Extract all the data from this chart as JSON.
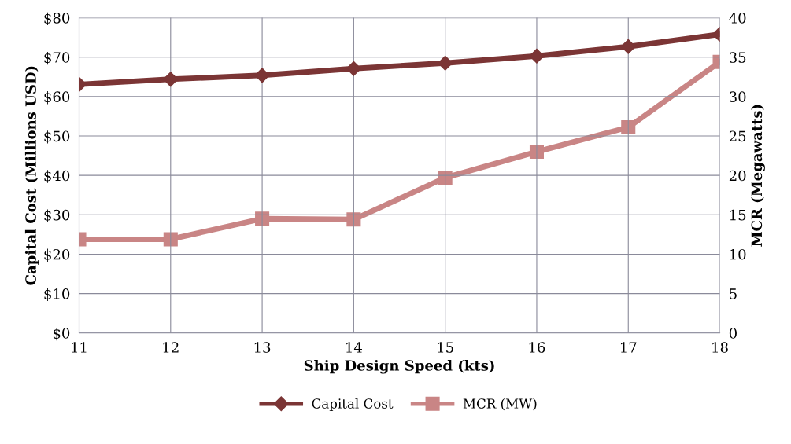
{
  "chart_data": {
    "type": "line",
    "xlabel": "Ship Design Speed (kts)",
    "ylabel": "Capital Cost (Millions USD)",
    "y2label": "MCR (Megawatts)",
    "categories": [
      "11",
      "12",
      "13",
      "14",
      "15",
      "16",
      "17",
      "18"
    ],
    "series": [
      {
        "name": "Capital Cost",
        "color": "#7b3535",
        "marker": "diamond",
        "values": [
          63.1,
          64.4,
          65.4,
          67.1,
          68.5,
          70.3,
          72.7,
          75.8
        ]
      },
      {
        "name": "MCR (MW)",
        "color": "#c98585",
        "marker": "square",
        "axis": "y2",
        "values": [
          11.9,
          11.9,
          14.5,
          14.4,
          19.7,
          23.0,
          26.1,
          34.4
        ]
      }
    ],
    "ylim": [
      0,
      80
    ],
    "yticks": [
      {
        "value": 0,
        "label": "$0"
      },
      {
        "value": 10,
        "label": "$10"
      },
      {
        "value": 20,
        "label": "$20"
      },
      {
        "value": 30,
        "label": "$30"
      },
      {
        "value": 40,
        "label": "$40"
      },
      {
        "value": 50,
        "label": "$50"
      },
      {
        "value": 60,
        "label": "$60"
      },
      {
        "value": 70,
        "label": "$70"
      },
      {
        "value": 80,
        "label": "$80"
      }
    ],
    "y2lim": [
      0,
      40
    ],
    "y2ticks": [
      0,
      5,
      10,
      15,
      20,
      25,
      30,
      35,
      40
    ],
    "grid": true,
    "legend": "bottom"
  }
}
